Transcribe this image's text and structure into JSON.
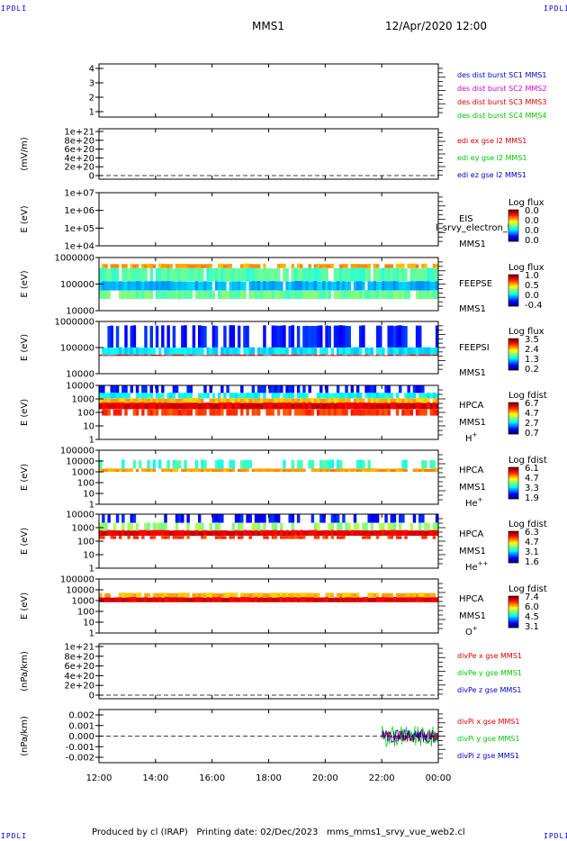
{
  "corner_tag": "IPDLI",
  "header": {
    "mission": "MMS1",
    "datetime": "12/Apr/2020 12:00"
  },
  "footer": {
    "produced": "Produced by cl (IRAP)",
    "printing": "Printing date: 02/Dec/2023",
    "script": "mms_mms1_srvy_vue_web2.cl"
  },
  "colors": {
    "mms1": "#0000c8",
    "mms2": "#e000e0",
    "mms3": "#e00000",
    "mms4": "#00c800",
    "x": "#e00000",
    "y": "#00c800",
    "z": "#0000c8"
  },
  "chart_data": {
    "type": "heatmap",
    "x_ticks": [
      "12:00",
      "14:00",
      "16:00",
      "18:00",
      "20:00",
      "22:00",
      "00:00"
    ],
    "panels": [
      {
        "type": "line",
        "ytick_labels": [
          "4",
          "3",
          "2",
          "1"
        ],
        "ylabel": "",
        "legend": [
          {
            "text": "des dist burst SC1 MMS1",
            "color": "#0000c8"
          },
          {
            "text": "des dist burst SC2 MMS2",
            "color": "#e000e0"
          },
          {
            "text": "des dist burst SC3 MMS3",
            "color": "#e00000"
          },
          {
            "text": "des dist burst SC4 MMS4",
            "color": "#00c800"
          }
        ]
      },
      {
        "type": "line",
        "ytick_labels": [
          "1e+21",
          "8e+20",
          "6e+20",
          "4e+20",
          "2e+20",
          "0"
        ],
        "ylabel": "(mV/m)",
        "dashed_zero": true,
        "legend": [
          {
            "text": "edi ex gse l2 MMS1",
            "color": "#e00000"
          },
          {
            "text": "edi ey gse l2 MMS1",
            "color": "#00c800"
          },
          {
            "text": "edi ez gse l2 MMS1",
            "color": "#0000c8"
          }
        ]
      },
      {
        "type": "heatmap",
        "ytick_labels": [
          "1e+07",
          "1e+06",
          "1e+05",
          "1e+04"
        ],
        "ylabel": "E (eV)",
        "instrument": "EIS",
        "sc": "MMS1",
        "species": "",
        "overlay_text": "l_srvy_electron_to",
        "cbar_title": "Log flux",
        "cbar_ticks": [
          "0.0",
          "0.0",
          "0.0",
          "0.0"
        ]
      },
      {
        "type": "heatmap",
        "ytick_labels": [
          "1000000",
          "100000",
          "10000"
        ],
        "ylabel": "E (eV)",
        "instrument": "FEEPSE",
        "sc": "MMS1",
        "species": "",
        "cbar_title": "Log flux",
        "cbar_ticks": [
          "1.0",
          "0.5",
          "0.0",
          "-0.4"
        ]
      },
      {
        "type": "heatmap",
        "ytick_labels": [
          "1000000",
          "100000",
          "10000"
        ],
        "ylabel": "E (eV)",
        "instrument": "FEEPSI",
        "sc": "MMS1",
        "species": "",
        "cbar_title": "Log flux",
        "cbar_ticks": [
          "3.5",
          "2.4",
          "1.3",
          "0.2"
        ]
      },
      {
        "type": "heatmap",
        "ytick_labels": [
          "10000",
          "1000",
          "100",
          "10",
          "1"
        ],
        "ylabel": "E (eV)",
        "instrument": "HPCA",
        "sc": "MMS1",
        "species": "H",
        "species_sup": "+",
        "cbar_title": "Log fdist",
        "cbar_ticks": [
          "6.7",
          "4.7",
          "2.7",
          "0.7"
        ]
      },
      {
        "type": "heatmap",
        "ytick_labels": [
          "100000",
          "10000",
          "1000",
          "100",
          "10",
          "1"
        ],
        "ylabel": "E (eV)",
        "instrument": "HPCA",
        "sc": "MMS1",
        "species": "He",
        "species_sup": "+",
        "cbar_title": "Log fdist",
        "cbar_ticks": [
          "6.1",
          "4.7",
          "3.3",
          "1.9"
        ]
      },
      {
        "type": "heatmap",
        "ytick_labels": [
          "10000",
          "1000",
          "100",
          "10",
          "1"
        ],
        "ylabel": "E (eV)",
        "instrument": "HPCA",
        "sc": "MMS1",
        "species": "He",
        "species_sup": "++",
        "cbar_title": "Log fdist",
        "cbar_ticks": [
          "6.3",
          "4.7",
          "3.1",
          "1.6"
        ]
      },
      {
        "type": "heatmap",
        "ytick_labels": [
          "100000",
          "10000",
          "1000",
          "100",
          "10",
          "1"
        ],
        "ylabel": "E (eV)",
        "instrument": "HPCA",
        "sc": "MMS1",
        "species": "O",
        "species_sup": "+",
        "cbar_title": "Log fdist",
        "cbar_ticks": [
          "7.4",
          "6.0",
          "4.5",
          "3.1"
        ]
      },
      {
        "type": "line",
        "ytick_labels": [
          "1e+21",
          "8e+20",
          "6e+20",
          "4e+20",
          "2e+20",
          "0"
        ],
        "ylabel": "(nPa/km)",
        "dashed_zero": true,
        "legend": [
          {
            "text": "divPe x gse MMS1",
            "color": "#e00000"
          },
          {
            "text": "divPe y gse MMS1",
            "color": "#00c800"
          },
          {
            "text": "divPe z gse MMS1",
            "color": "#0000c8"
          }
        ]
      },
      {
        "type": "line",
        "ytick_labels": [
          "0.002",
          "0.001",
          "0.000",
          "-0.001",
          "-0.002"
        ],
        "ylabel": "(nPa/km)",
        "dashed_zero": true,
        "ylim": [
          -0.0025,
          0.0025
        ],
        "data_start": "22:00",
        "legend": [
          {
            "text": "divPi x gse MMS1",
            "color": "#e00000"
          },
          {
            "text": "divPi y gse MMS1",
            "color": "#00c800"
          },
          {
            "text": "divPi z gse MMS1",
            "color": "#0000c8"
          }
        ]
      }
    ]
  }
}
